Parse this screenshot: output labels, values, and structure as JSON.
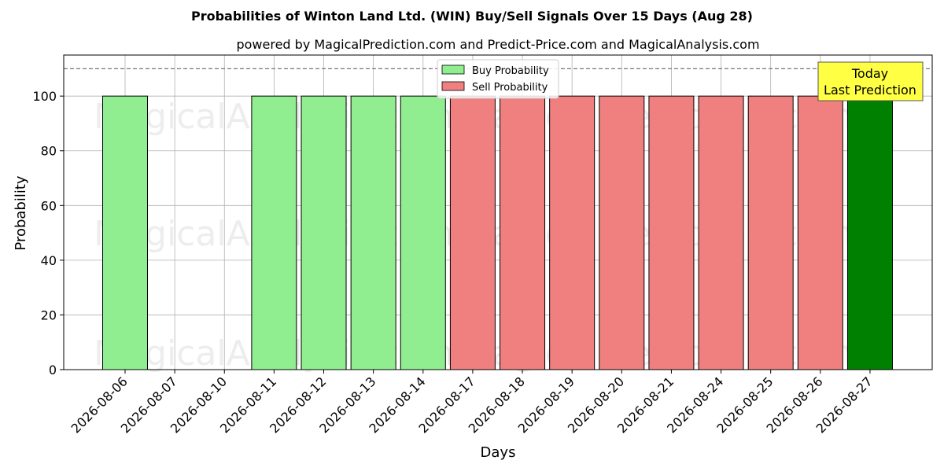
{
  "chart_data": {
    "type": "bar",
    "title": "Probabilities of Winton Land Ltd. (WIN) Buy/Sell Signals Over 15 Days (Aug 28)",
    "subtitle": "powered by MagicalPrediction.com and Predict-Price.com and MagicalAnalysis.com",
    "xlabel": "Days",
    "ylabel": "Probability",
    "ylim": [
      0,
      115
    ],
    "yticks": [
      0,
      20,
      40,
      60,
      80,
      100
    ],
    "grid": true,
    "legend_position": "top-center",
    "threshold_line": 110,
    "categories": [
      "2026-08-06",
      "2026-08-07",
      "2026-08-10",
      "2026-08-11",
      "2026-08-12",
      "2026-08-13",
      "2026-08-14",
      "2026-08-17",
      "2026-08-18",
      "2026-08-19",
      "2026-08-20",
      "2026-08-21",
      "2026-08-24",
      "2026-08-25",
      "2026-08-26",
      "2026-08-27"
    ],
    "series": [
      {
        "name": "Buy Probability",
        "color": "#90ee90",
        "values": [
          100,
          0,
          0,
          100,
          100,
          100,
          100,
          0,
          0,
          0,
          0,
          0,
          0,
          0,
          0,
          100
        ]
      },
      {
        "name": "Sell Probability",
        "color": "#f08080",
        "values": [
          0,
          0,
          0,
          0,
          0,
          0,
          0,
          100,
          100,
          100,
          100,
          100,
          100,
          100,
          100,
          0
        ]
      }
    ],
    "highlight": {
      "index": 15,
      "color": "#008000"
    },
    "annotation": {
      "line1": "Today",
      "line2": "Last Prediction",
      "color": "#ffff44"
    },
    "watermarks": [
      "MagicalAnalysis.com",
      "Magica Prediction.com"
    ]
  }
}
